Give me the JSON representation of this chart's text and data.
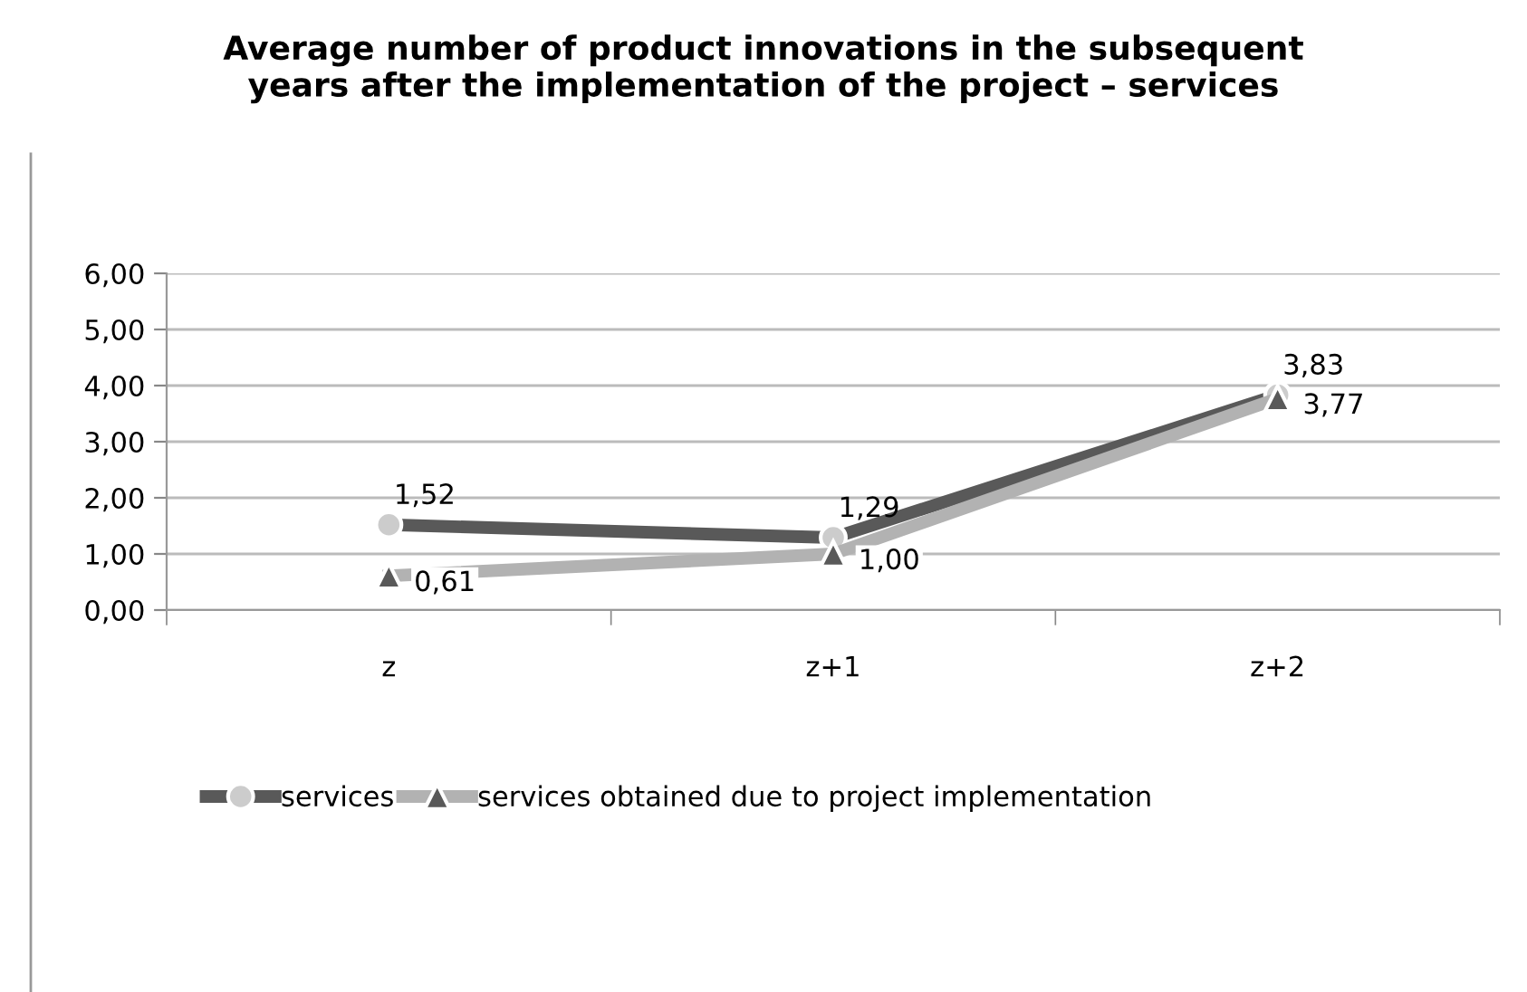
{
  "chart_data": {
    "type": "line",
    "title": "Average number of product innovations in the subsequent\nyears after the implementation of the project – services",
    "categories": [
      "z",
      "z+1",
      "z+2"
    ],
    "series": [
      {
        "name": "services",
        "color": "#595959",
        "marker": "circle",
        "values": [
          1.52,
          1.29,
          3.83
        ],
        "value_labels": [
          "1,52",
          "1,29",
          "3,83"
        ]
      },
      {
        "name": "services obtained due to project implementation",
        "color": "#b2b2b2",
        "marker": "triangle",
        "values": [
          0.61,
          1.0,
          3.77
        ],
        "value_labels": [
          "0,61",
          "1,00",
          "3,77"
        ]
      }
    ],
    "ylim": [
      0,
      6
    ],
    "yticks": [
      {
        "value": 0,
        "label": "0,00"
      },
      {
        "value": 1,
        "label": "1,00"
      },
      {
        "value": 2,
        "label": "2,00"
      },
      {
        "value": 3,
        "label": "3,00"
      },
      {
        "value": 4,
        "label": "4,00"
      },
      {
        "value": 5,
        "label": "5,00"
      },
      {
        "value": 6,
        "label": "6,00"
      }
    ],
    "grid": "y",
    "legend": "bottom left"
  }
}
